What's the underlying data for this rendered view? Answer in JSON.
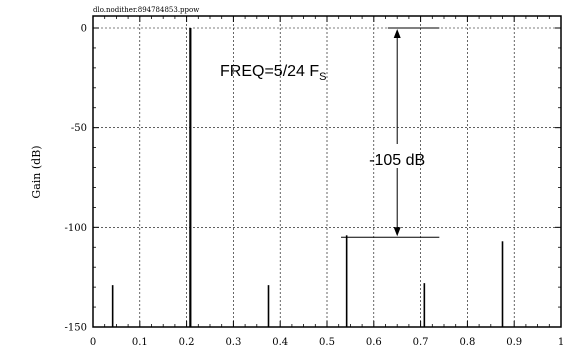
{
  "chart_data": {
    "type": "bar",
    "file_label": "dlo.nodither.894784853.ppow",
    "title": "",
    "xlabel": "",
    "ylabel": "Gain (dB)",
    "xlim": [
      0,
      1
    ],
    "ylim": [
      -150,
      0
    ],
    "x_ticks": [
      0,
      0.1,
      0.2,
      0.3,
      0.4,
      0.5,
      0.6,
      0.7,
      0.8,
      0.9,
      1
    ],
    "x_tick_labels": [
      "0",
      "0.1",
      "0.2",
      "0.3",
      "0.4",
      "0.5",
      "0.6",
      "0.7",
      "0.8",
      "0.9",
      "1"
    ],
    "y_ticks": [
      0,
      -50,
      -100,
      -150
    ],
    "y_tick_labels": [
      "0",
      "-50",
      "-100",
      "-150"
    ],
    "grid": true,
    "baseline": -150,
    "x": [
      0.042,
      0.208,
      0.375,
      0.542,
      0.708,
      0.875
    ],
    "values": [
      -129,
      0,
      -129,
      -104,
      -128,
      -107
    ],
    "annotations": {
      "freq_main": "FREQ=5/24 F",
      "freq_sub": "S",
      "span_label": "-105 dB",
      "span_x": 0.65,
      "span_top": 0,
      "span_bottom": -105,
      "top_line_x": [
        0.63,
        0.74
      ],
      "bottom_line_x": [
        0.53,
        0.74
      ]
    }
  }
}
